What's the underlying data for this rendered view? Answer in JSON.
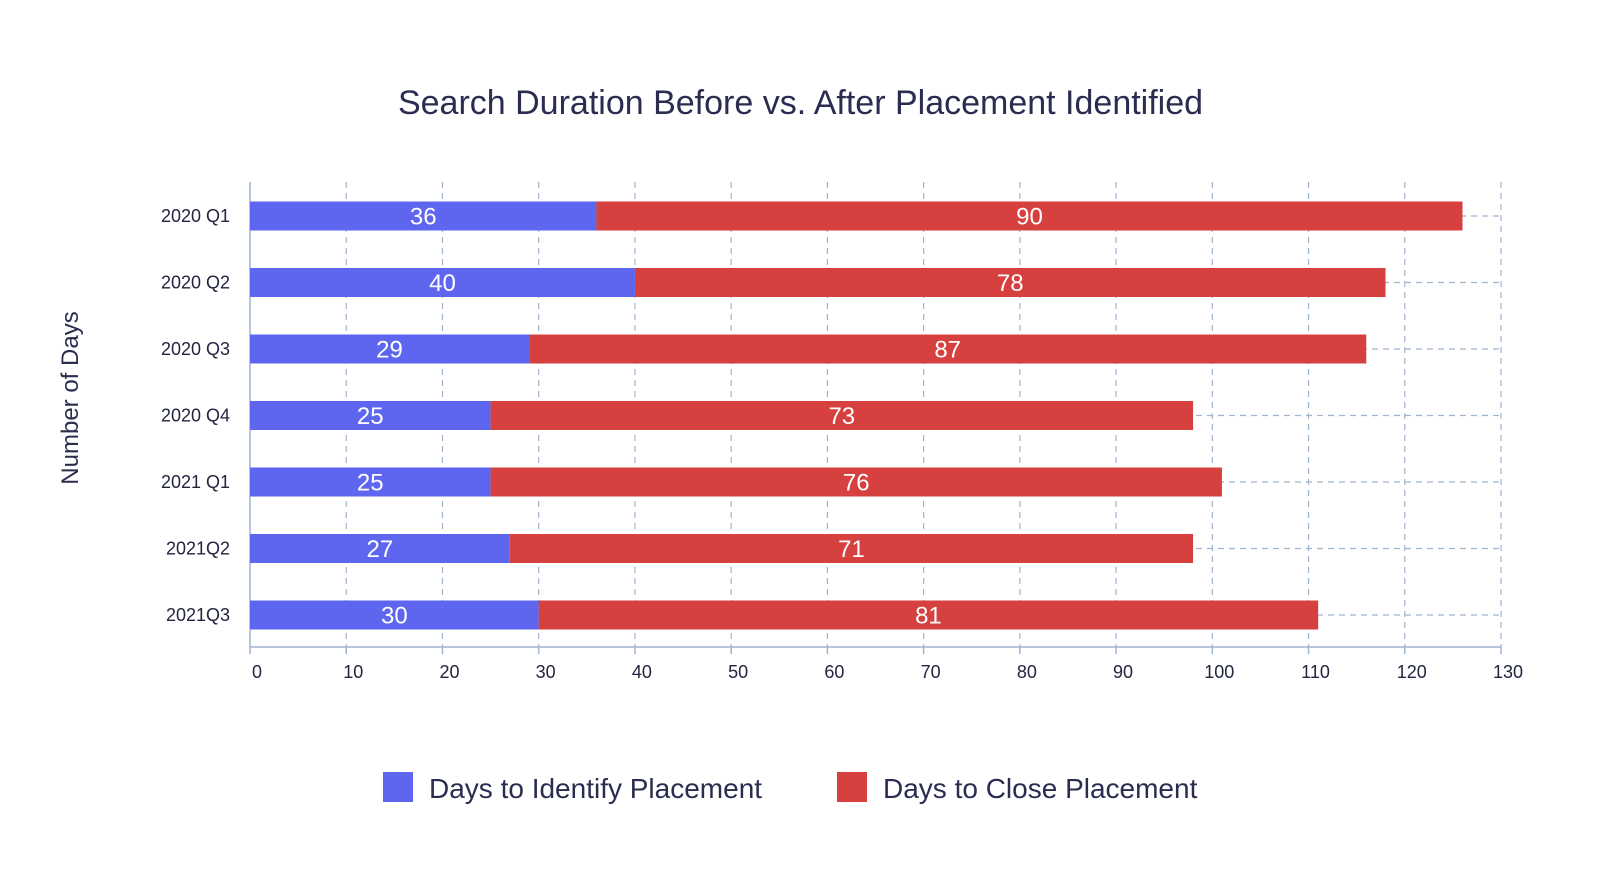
{
  "chart_data": {
    "type": "bar",
    "orientation": "horizontal",
    "stacked": true,
    "title": "Search Duration Before vs. After Placement Identified",
    "xlabel": "",
    "ylabel": "Number of Days",
    "categories": [
      "2020 Q1",
      "2020 Q2",
      "2020 Q3",
      "2020 Q4",
      "2021 Q1",
      "2021Q2",
      "2021Q3"
    ],
    "series": [
      {
        "name": "Days to Identify Placement",
        "color": "#5e66ef",
        "values": [
          36,
          40,
          29,
          25,
          25,
          27,
          30
        ]
      },
      {
        "name": "Days to Close Placement",
        "color": "#d6403f",
        "values": [
          90,
          78,
          87,
          73,
          76,
          71,
          81
        ]
      }
    ],
    "xlim": [
      0,
      130
    ],
    "xticks": [
      0,
      10,
      20,
      30,
      40,
      50,
      60,
      70,
      80,
      90,
      100,
      110,
      120,
      130
    ],
    "grid": true,
    "grid_color": "#9fb4d0",
    "legend_position": "bottom"
  }
}
